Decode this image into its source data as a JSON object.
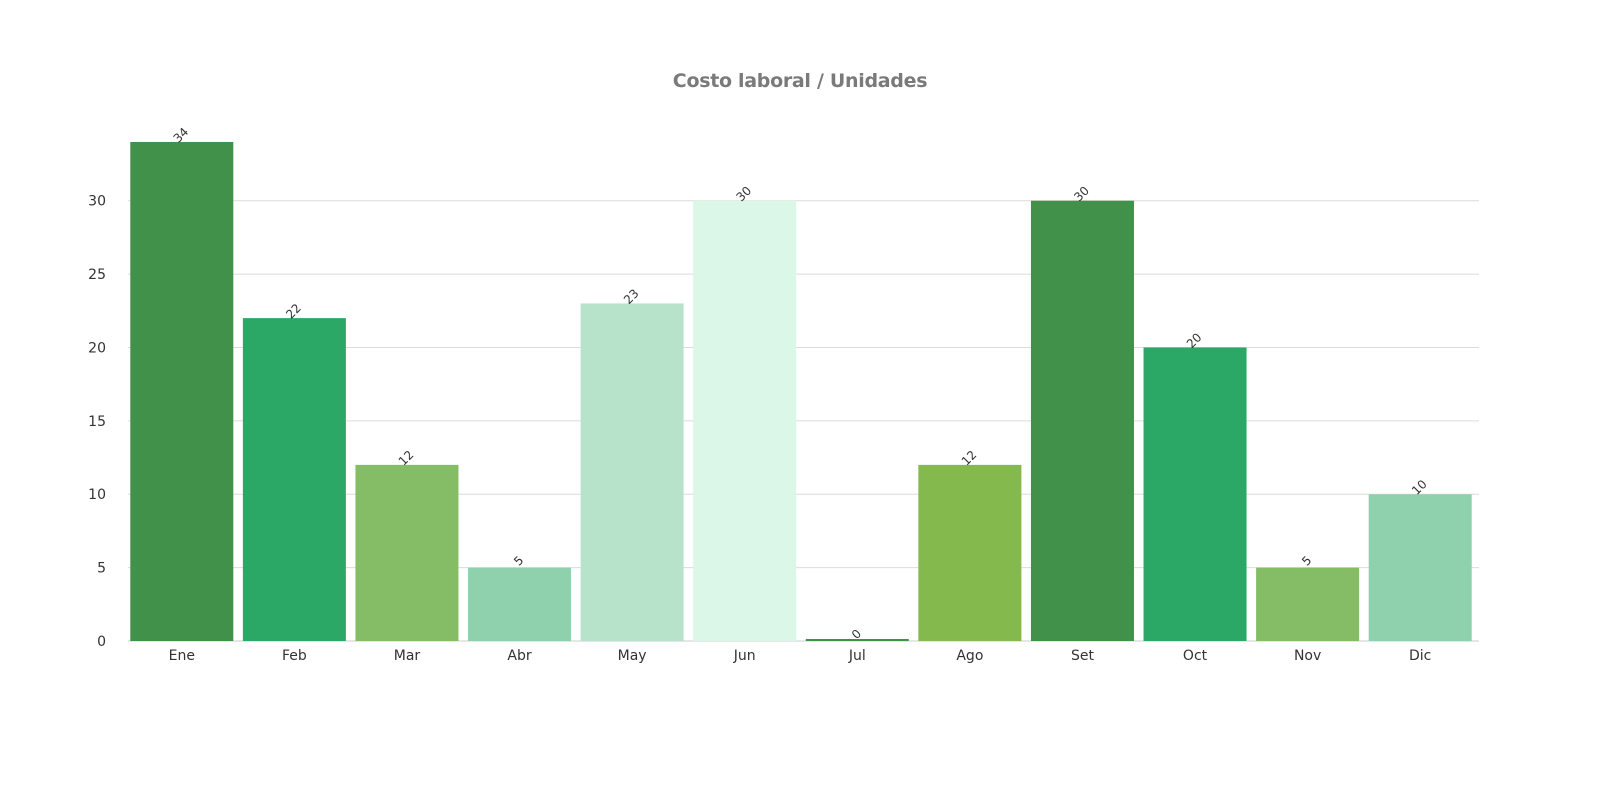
{
  "chart_data": {
    "type": "bar",
    "title": "Costo laboral / Unidades",
    "categories": [
      "Ene",
      "Feb",
      "Mar",
      "Abr",
      "May",
      "Jun",
      "Jul",
      "Ago",
      "Set",
      "Oct",
      "Nov",
      "Dic"
    ],
    "values": [
      34,
      22,
      12,
      5,
      23,
      30,
      0,
      12,
      30,
      20,
      5,
      10
    ],
    "colors": [
      "#41914a",
      "#2ba866",
      "#84bd66",
      "#8fd1ad",
      "#b6e3ca",
      "#dbf7e8",
      "#41914a",
      "#84b94d",
      "#41914a",
      "#2ba866",
      "#84bd66",
      "#8fd1ad"
    ],
    "ylim": [
      0,
      34
    ],
    "yticks": [
      0,
      5,
      10,
      15,
      20,
      25,
      30
    ],
    "xlabel": "",
    "ylabel": "",
    "grid": true,
    "data_labels": true
  }
}
